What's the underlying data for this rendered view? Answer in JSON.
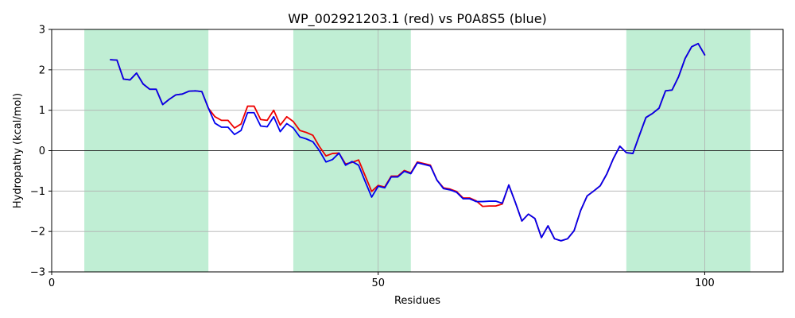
{
  "chart_data": {
    "type": "line",
    "title": "WP_002921203.1 (red) vs P0A8S5 (blue)",
    "xlabel": "Residues",
    "ylabel": "Hydropathy (kcal/mol)",
    "xlim": [
      0,
      112
    ],
    "ylim": [
      -3,
      3
    ],
    "xticks": [
      0,
      50,
      100
    ],
    "yticks": [
      -3,
      -2,
      -1,
      0,
      1,
      2,
      3
    ],
    "grid": true,
    "zero_line": true,
    "highlight_regions": [
      {
        "start": 5,
        "end": 24,
        "color": "#c0eed4"
      },
      {
        "start": 37,
        "end": 55,
        "color": "#c0eed4"
      },
      {
        "start": 88,
        "end": 107,
        "color": "#c0eed4"
      }
    ],
    "series": [
      {
        "color": "#ee0000",
        "x": [
          9,
          10,
          11,
          12,
          13,
          14,
          15,
          16,
          17,
          18,
          19,
          20,
          21,
          22,
          23,
          24,
          25,
          26,
          27,
          28,
          29,
          30,
          31,
          32,
          33,
          34,
          35,
          36,
          37,
          38,
          39,
          40,
          41,
          42,
          43,
          44,
          45,
          46,
          47,
          48,
          49,
          50,
          51,
          52,
          53,
          54,
          55,
          56,
          57,
          58,
          59,
          60,
          61,
          62,
          63,
          64,
          65,
          66,
          67,
          68,
          69,
          70,
          71,
          72,
          73,
          74,
          75,
          76,
          77,
          78,
          79,
          80,
          81,
          82,
          83,
          84,
          85,
          86,
          87,
          88,
          89,
          90,
          91,
          92,
          93,
          94,
          95,
          96,
          97,
          98,
          99,
          100
        ],
        "y": [
          2.25,
          2.24,
          1.77,
          1.75,
          1.92,
          1.65,
          1.52,
          1.52,
          1.14,
          1.27,
          1.38,
          1.4,
          1.47,
          1.48,
          1.46,
          1.05,
          0.84,
          0.75,
          0.75,
          0.56,
          0.66,
          1.1,
          1.1,
          0.77,
          0.75,
          1.0,
          0.63,
          0.84,
          0.72,
          0.5,
          0.45,
          0.38,
          0.1,
          -0.13,
          -0.07,
          -0.06,
          -0.33,
          -0.29,
          -0.23,
          -0.62,
          -1.01,
          -0.86,
          -0.9,
          -0.63,
          -0.63,
          -0.49,
          -0.55,
          -0.28,
          -0.32,
          -0.36,
          -0.73,
          -0.92,
          -0.95,
          -1.01,
          -1.17,
          -1.17,
          -1.24,
          -1.38,
          -1.37,
          -1.37,
          -1.32,
          -0.85,
          -1.28,
          -1.74,
          -1.57,
          -1.68,
          -2.15,
          -1.86,
          -2.18,
          -2.23,
          -2.18,
          -1.98,
          -1.48,
          -1.12,
          -1.0,
          -0.87,
          -0.58,
          -0.2,
          0.11,
          -0.05,
          -0.07,
          0.38,
          0.82,
          0.92,
          1.05,
          1.48,
          1.5,
          1.83,
          2.28,
          2.57,
          2.65,
          2.37
        ]
      },
      {
        "color": "#0000ee",
        "x": [
          9,
          10,
          11,
          12,
          13,
          14,
          15,
          16,
          17,
          18,
          19,
          20,
          21,
          22,
          23,
          24,
          25,
          26,
          27,
          28,
          29,
          30,
          31,
          32,
          33,
          34,
          35,
          36,
          37,
          38,
          39,
          40,
          41,
          42,
          43,
          44,
          45,
          46,
          47,
          48,
          49,
          50,
          51,
          52,
          53,
          54,
          55,
          56,
          57,
          58,
          59,
          60,
          61,
          62,
          63,
          64,
          65,
          66,
          67,
          68,
          69,
          70,
          71,
          72,
          73,
          74,
          75,
          76,
          77,
          78,
          79,
          80,
          81,
          82,
          83,
          84,
          85,
          86,
          87,
          88,
          89,
          90,
          91,
          92,
          93,
          94,
          95,
          96,
          97,
          98,
          99,
          100
        ],
        "y": [
          2.25,
          2.24,
          1.77,
          1.75,
          1.92,
          1.65,
          1.52,
          1.52,
          1.14,
          1.27,
          1.38,
          1.4,
          1.47,
          1.48,
          1.46,
          1.05,
          0.68,
          0.58,
          0.58,
          0.4,
          0.5,
          0.94,
          0.94,
          0.61,
          0.59,
          0.84,
          0.47,
          0.67,
          0.56,
          0.34,
          0.29,
          0.22,
          0.0,
          -0.28,
          -0.22,
          -0.06,
          -0.36,
          -0.27,
          -0.36,
          -0.76,
          -1.15,
          -0.88,
          -0.92,
          -0.65,
          -0.65,
          -0.51,
          -0.57,
          -0.3,
          -0.34,
          -0.38,
          -0.73,
          -0.94,
          -0.97,
          -1.03,
          -1.19,
          -1.19,
          -1.26,
          -1.26,
          -1.25,
          -1.25,
          -1.3,
          -0.85,
          -1.28,
          -1.74,
          -1.57,
          -1.68,
          -2.15,
          -1.86,
          -2.18,
          -2.23,
          -2.18,
          -1.98,
          -1.48,
          -1.12,
          -1.0,
          -0.87,
          -0.58,
          -0.2,
          0.11,
          -0.05,
          -0.07,
          0.38,
          0.82,
          0.92,
          1.05,
          1.48,
          1.5,
          1.83,
          2.28,
          2.57,
          2.65,
          2.37
        ]
      }
    ]
  }
}
